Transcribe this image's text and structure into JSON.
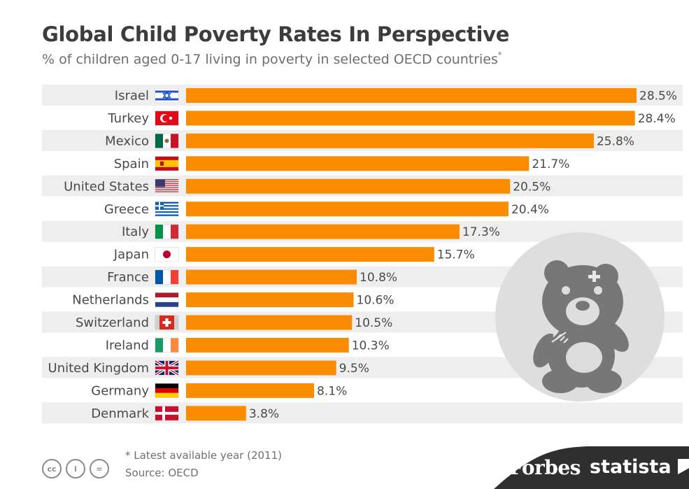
{
  "title": "Global Child Poverty Rates In Perspective",
  "subtitle": "% of children aged 0-17 living in poverty in selected OECD countries",
  "subtitle_mark": "*",
  "chart_data": {
    "type": "bar",
    "orientation": "horizontal",
    "title": "Global Child Poverty Rates In Perspective",
    "xlabel": "",
    "ylabel": "",
    "xlim": [
      0,
      28.5
    ],
    "grid": false,
    "categories": [
      "Israel",
      "Turkey",
      "Mexico",
      "Spain",
      "United States",
      "Greece",
      "Italy",
      "Japan",
      "France",
      "Netherlands",
      "Switzerland",
      "Ireland",
      "United Kingdom",
      "Germany",
      "Denmark"
    ],
    "values": [
      28.5,
      28.4,
      25.8,
      21.7,
      20.5,
      20.4,
      17.3,
      15.7,
      10.8,
      10.6,
      10.5,
      10.3,
      9.5,
      8.1,
      3.8
    ],
    "value_labels": [
      "28.5%",
      "28.4%",
      "25.8%",
      "21.7%",
      "20.5%",
      "20.4%",
      "17.3%",
      "15.7%",
      "10.8%",
      "10.6%",
      "10.5%",
      "10.3%",
      "9.5%",
      "8.1%",
      "3.8%"
    ],
    "flag_icons": [
      "israel-flag-icon",
      "turkey-flag-icon",
      "mexico-flag-icon",
      "spain-flag-icon",
      "united-states-flag-icon",
      "greece-flag-icon",
      "italy-flag-icon",
      "japan-flag-icon",
      "france-flag-icon",
      "netherlands-flag-icon",
      "switzerland-flag-icon",
      "ireland-flag-icon",
      "united-kingdom-flag-icon",
      "germany-flag-icon",
      "denmark-flag-icon"
    ]
  },
  "colors": {
    "bar": "#fb8c00",
    "row_band": "#eeeeee",
    "text": "#4a4a4a",
    "teddy_circle": "#dedede",
    "teddy": "#777777",
    "brand_band": "#2f2f2f"
  },
  "illustration_icon": "teddy-bear-icon",
  "footer": {
    "footnote": "* Latest available year (2011)",
    "source": "Source: OECD",
    "license_icons": [
      "cc-icon",
      "attribution-icon",
      "no-derivatives-icon"
    ],
    "license_glyphs": [
      "cc",
      "i",
      "="
    ],
    "brand_forbes": "Forbes",
    "brand_statista": "statista"
  }
}
